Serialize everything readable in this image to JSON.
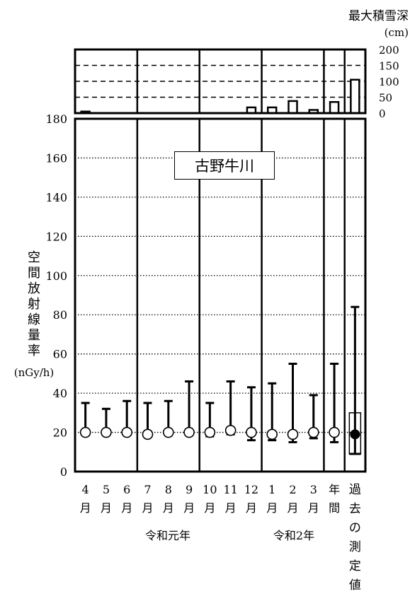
{
  "chart_data": {
    "type": "range_plot",
    "station_label": "古野牛川",
    "y_axis": {
      "label_chars": [
        "空",
        "間",
        "放",
        "射",
        "線",
        "量",
        "率"
      ],
      "unit": "(nGy/h)",
      "ylim": [
        0,
        180
      ],
      "ticks": [
        0,
        20,
        40,
        60,
        80,
        100,
        120,
        140,
        160,
        180
      ]
    },
    "snow_axis": {
      "title": "最大積雪深",
      "unit": "(cm)",
      "ylim": [
        0,
        200
      ],
      "ticks": [
        0,
        50,
        100,
        150,
        200
      ]
    },
    "categories": [
      {
        "top": "4",
        "bottom": "月"
      },
      {
        "top": "5",
        "bottom": "月"
      },
      {
        "top": "6",
        "bottom": "月"
      },
      {
        "top": "7",
        "bottom": "月"
      },
      {
        "top": "8",
        "bottom": "月"
      },
      {
        "top": "9",
        "bottom": "月"
      },
      {
        "top": "10",
        "bottom": "月"
      },
      {
        "top": "11",
        "bottom": "月"
      },
      {
        "top": "12",
        "bottom": "月"
      },
      {
        "top": "1",
        "bottom": "月"
      },
      {
        "top": "2",
        "bottom": "月"
      },
      {
        "top": "3",
        "bottom": "月"
      },
      {
        "top": "年",
        "bottom": "間"
      }
    ],
    "past_label_chars": [
      "過",
      "去",
      "の",
      "測",
      "定",
      "値"
    ],
    "year_groups": [
      "令和元年",
      "令和2年"
    ],
    "monthly": [
      {
        "min": 19,
        "max": 35,
        "mean": 20
      },
      {
        "min": 19,
        "max": 32,
        "mean": 20
      },
      {
        "min": 19,
        "max": 36,
        "mean": 20
      },
      {
        "min": 18,
        "max": 35,
        "mean": 19
      },
      {
        "min": 19,
        "max": 36,
        "mean": 20
      },
      {
        "min": 19,
        "max": 46,
        "mean": 20
      },
      {
        "min": 18,
        "max": 35,
        "mean": 20
      },
      {
        "min": 19,
        "max": 46,
        "mean": 21
      },
      {
        "min": 16,
        "max": 43,
        "mean": 20
      },
      {
        "min": 16,
        "max": 45,
        "mean": 19
      },
      {
        "min": 15,
        "max": 55,
        "mean": 19
      },
      {
        "min": 17,
        "max": 39,
        "mean": 20
      },
      {
        "min": 15,
        "max": 55,
        "mean": 20
      }
    ],
    "past": {
      "min": 9,
      "max": 84,
      "mean": 19,
      "box_low": 9,
      "box_high": 30
    },
    "snow_depth": [
      5,
      0,
      0,
      0,
      0,
      0,
      0,
      0,
      18,
      18,
      38,
      10,
      35,
      105
    ]
  }
}
